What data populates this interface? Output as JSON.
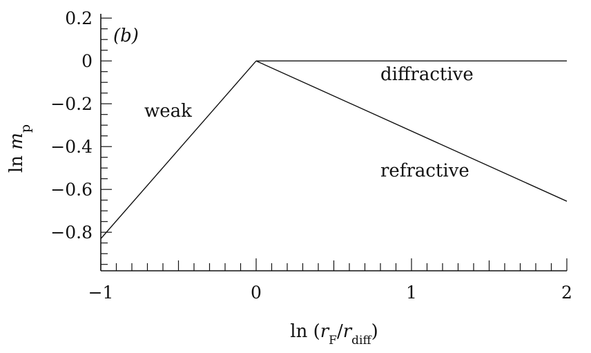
{
  "chart_data": {
    "type": "line",
    "panel_label": "(b)",
    "xlabel": {
      "prefix": "ln (",
      "a": "r",
      "a_sub": "F",
      "slash": "/",
      "b": "r",
      "b_sub": "diff",
      "suffix": ")"
    },
    "ylabel": {
      "prefix": "ln ",
      "var": "m",
      "var_sub": "p"
    },
    "xlim": [
      -1,
      2
    ],
    "ylim": [
      -0.98,
      0.22
    ],
    "x_ticks": [
      -1,
      0,
      1,
      2
    ],
    "x_tick_labels": [
      "−1",
      "0",
      "1",
      "2"
    ],
    "x_minor_step": 0.1,
    "y_ticks": [
      0.2,
      0,
      -0.2,
      -0.4,
      -0.6,
      -0.8
    ],
    "y_tick_labels": [
      "0.2",
      "0",
      "−0.2",
      "−0.4",
      "−0.6",
      "−0.8"
    ],
    "y_minor_step": 0.05,
    "grid": false,
    "series": [
      {
        "x": [
          -1,
          0
        ],
        "y": [
          -0.83,
          0.0
        ],
        "label": "weak",
        "label_at": [
          -0.72,
          -0.26
        ]
      },
      {
        "x": [
          0,
          2
        ],
        "y": [
          0.0,
          0.0
        ],
        "label": "diffractive",
        "label_at": [
          0.8,
          -0.09
        ]
      },
      {
        "x": [
          0,
          2
        ],
        "y": [
          0.0,
          -0.655
        ],
        "label": "refractive",
        "label_at": [
          0.8,
          -0.54
        ]
      }
    ]
  }
}
